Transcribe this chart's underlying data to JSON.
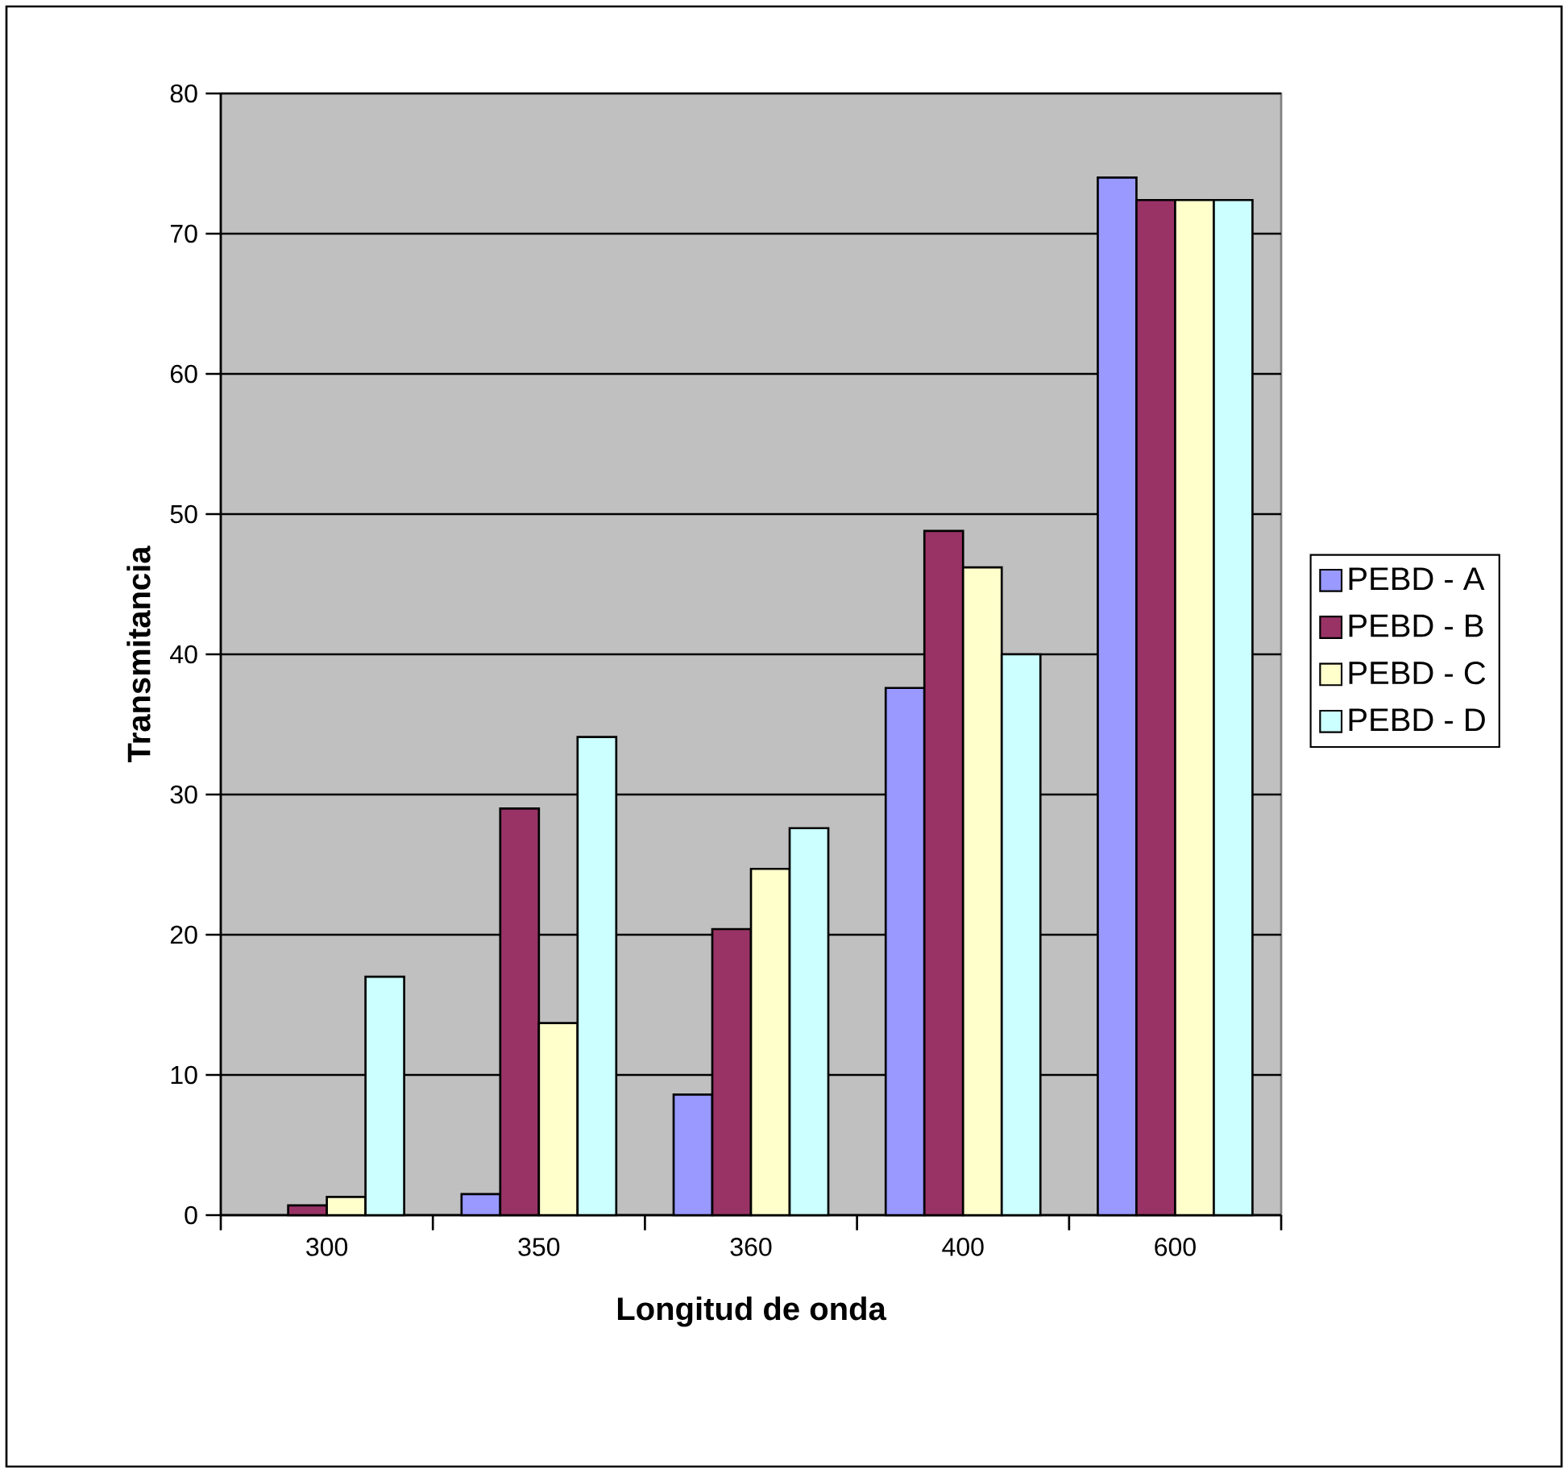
{
  "chart_data": {
    "type": "bar",
    "xlabel": "Longitud de onda",
    "ylabel": "Transmitancia",
    "categories": [
      "300",
      "350",
      "360",
      "400",
      "600"
    ],
    "series": [
      {
        "name": "PEBD - A",
        "color": "#9999ff",
        "values": [
          null,
          1.5,
          8.6,
          37.6,
          74.0
        ]
      },
      {
        "name": "PEBD - B",
        "color": "#993366",
        "values": [
          0.7,
          29.0,
          20.4,
          48.8,
          72.4
        ]
      },
      {
        "name": "PEBD - C",
        "color": "#ffffcc",
        "values": [
          1.3,
          13.7,
          24.7,
          46.2,
          72.4
        ]
      },
      {
        "name": "PEBD - D",
        "color": "#ccffff",
        "values": [
          17.0,
          34.1,
          27.6,
          40.0,
          72.4
        ]
      }
    ],
    "ylim": [
      0,
      80
    ],
    "yticks": [
      0,
      10,
      20,
      30,
      40,
      50,
      60,
      70,
      80
    ],
    "grid": "y",
    "legend": "right"
  }
}
